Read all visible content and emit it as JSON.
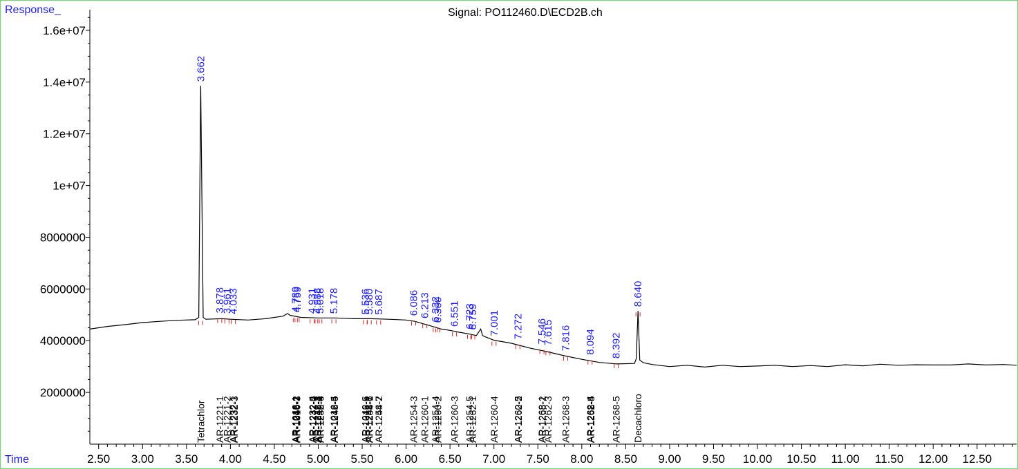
{
  "header": {
    "y_label": "Response_",
    "x_label": "Time",
    "title": "Signal: PO112460.D\\ECD2B.ch"
  },
  "colors": {
    "trace": "#000000",
    "peak_label": "#1c1cff",
    "baseline_mark": "#e02020",
    "compound_label": "#000000"
  },
  "chart_data": {
    "type": "line",
    "title": "Signal: PO112460.D\\ECD2B.ch",
    "xlabel": "Time",
    "ylabel": "Response_",
    "xlim": [
      2.4,
      12.95
    ],
    "ylim": [
      0,
      16800000
    ],
    "x_ticks": [
      "2.50",
      "3.00",
      "3.50",
      "4.00",
      "4.50",
      "5.00",
      "5.50",
      "6.00",
      "6.50",
      "7.00",
      "7.50",
      "8.00",
      "8.50",
      "9.00",
      "9.50",
      "10.00",
      "10.50",
      "11.00",
      "11.50",
      "12.00",
      "12.50"
    ],
    "y_ticks": [
      {
        "value": 2000000,
        "label": "2000000"
      },
      {
        "value": 4000000,
        "label": "4000000"
      },
      {
        "value": 6000000,
        "label": "6000000"
      },
      {
        "value": 8000000,
        "label": "8000000"
      },
      {
        "value": 10000000,
        "label": "1e+07"
      },
      {
        "value": 12000000,
        "label": "1.2e+07"
      },
      {
        "value": 14000000,
        "label": "1.4e+07"
      },
      {
        "value": 16000000,
        "label": "1.6e+07"
      }
    ],
    "series": [
      {
        "x": [
          2.4,
          2.6,
          2.8,
          3.0,
          3.2,
          3.4,
          3.6,
          3.64,
          3.662,
          3.69,
          3.72,
          3.9,
          4.0,
          4.2,
          4.4,
          4.6,
          4.65,
          4.68,
          4.8,
          5.0,
          5.2,
          5.4,
          5.6,
          5.8,
          6.0,
          6.1,
          6.2,
          6.3,
          6.4,
          6.5,
          6.6,
          6.7,
          6.8,
          6.85,
          6.87,
          6.9,
          7.0,
          7.2,
          7.4,
          7.6,
          7.8,
          8.0,
          8.2,
          8.4,
          8.6,
          8.62,
          8.64,
          8.66,
          8.7,
          8.8,
          9.0,
          9.2,
          9.4,
          9.6,
          9.8,
          10.0,
          10.2,
          10.4,
          10.6,
          10.8,
          11.0,
          11.2,
          11.4,
          11.6,
          11.8,
          12.0,
          12.2,
          12.4,
          12.6,
          12.8,
          12.95
        ],
        "y": [
          4450000,
          4550000,
          4620000,
          4700000,
          4750000,
          4790000,
          4810000,
          4900000,
          13850000,
          4900000,
          4830000,
          4850000,
          4830000,
          4800000,
          4850000,
          4950000,
          5050000,
          4980000,
          4900000,
          4880000,
          4880000,
          4850000,
          4850000,
          4830000,
          4800000,
          4750000,
          4650000,
          4550000,
          4450000,
          4400000,
          4330000,
          4270000,
          4200000,
          4450000,
          4200000,
          4150000,
          4020000,
          3900000,
          3720000,
          3580000,
          3420000,
          3280000,
          3160000,
          3100000,
          3120000,
          3300000,
          5150000,
          3250000,
          3150000,
          3080000,
          3000000,
          3050000,
          2980000,
          3050000,
          3000000,
          3020000,
          3050000,
          3000000,
          3040000,
          3000000,
          3070000,
          3030000,
          3090000,
          3050000,
          3070000,
          3060000,
          3060000,
          3100000,
          3060000,
          3080000,
          3050000
        ]
      }
    ],
    "peaks": [
      "3.662",
      "3.878",
      "3.961",
      "4.033",
      "4.739",
      "4.759",
      "4.931",
      "4.988",
      "5.018",
      "5.178",
      "5.536",
      "5.580",
      "5.687",
      "6.086",
      "6.213",
      "6.332",
      "6.360",
      "6.551",
      "6.723",
      "6.759",
      "7.001",
      "7.272",
      "7.546",
      "7.615",
      "7.816",
      "8.094",
      "8.392",
      "8.640"
    ],
    "peak_rt": [
      3.662,
      3.878,
      3.961,
      4.033,
      4.739,
      4.759,
      4.931,
      4.988,
      5.018,
      5.178,
      5.536,
      5.58,
      5.687,
      6.086,
      6.213,
      6.332,
      6.36,
      6.551,
      6.723,
      6.759,
      7.001,
      7.272,
      7.546,
      7.615,
      7.816,
      8.094,
      8.392,
      8.64
    ],
    "peak_base_y": [
      13850000,
      4900000,
      4880000,
      4860000,
      4930000,
      4930000,
      4880000,
      4880000,
      4880000,
      4880000,
      4850000,
      4850000,
      4840000,
      4800000,
      4700000,
      4550000,
      4530000,
      4380000,
      4280000,
      4260000,
      4020000,
      3890000,
      3700000,
      3650000,
      3440000,
      3290000,
      3150000,
      5150000
    ],
    "compounds": [
      "Tetrachlor",
      "AR-1221-1",
      "AR-1221-2",
      "AR-1232-1",
      "AR-1232-3",
      "AR-1016-1",
      "AR-1242-1",
      "AR-1016-2",
      "AR-1248-2",
      "AR-1016-3",
      "AR-1232-4",
      "AR-1232-5",
      "AR-1242-2",
      "AR-1242-3",
      "AR-1242-4",
      "AR-1248-3",
      "AR-1248-4",
      "AR-1232-6",
      "AR-1016-4",
      "AR-1242-5",
      "AR-1248-5",
      "AR-1242-6",
      "AR-1016-5",
      "AR-1242-7",
      "AR-1248-6",
      "AR-1254-1",
      "AR-1254-2",
      "AR-1248-7",
      "AR-1254-3",
      "AR-1260-1",
      "AR-1254-4",
      "AR-1260-2",
      "AR-1260-3",
      "AR-1254-5",
      "AR-1262-1",
      "AR-1260-4",
      "AR-1260-5",
      "AR-1262-2",
      "AR-1268-1",
      "AR-1268-2",
      "AR-1262-3",
      "AR-1268-3",
      "AR-1262-4",
      "AR-1268-4",
      "AR-1262-5",
      "AR-1268-5",
      "Decachloro"
    ],
    "compound_rt": [
      3.662,
      3.878,
      3.961,
      4.033,
      4.045,
      4.739,
      4.741,
      4.745,
      4.75,
      4.755,
      4.935,
      4.938,
      4.94,
      4.988,
      4.992,
      4.996,
      5.018,
      5.022,
      5.178,
      5.182,
      5.186,
      5.536,
      5.54,
      5.575,
      5.58,
      5.582,
      5.687,
      5.69,
      6.086,
      6.213,
      6.332,
      6.36,
      6.551,
      6.723,
      6.759,
      7.001,
      7.272,
      7.276,
      7.546,
      7.55,
      7.615,
      7.816,
      8.094,
      8.098,
      8.102,
      8.392,
      8.64
    ],
    "grid": false,
    "legend": "none"
  }
}
